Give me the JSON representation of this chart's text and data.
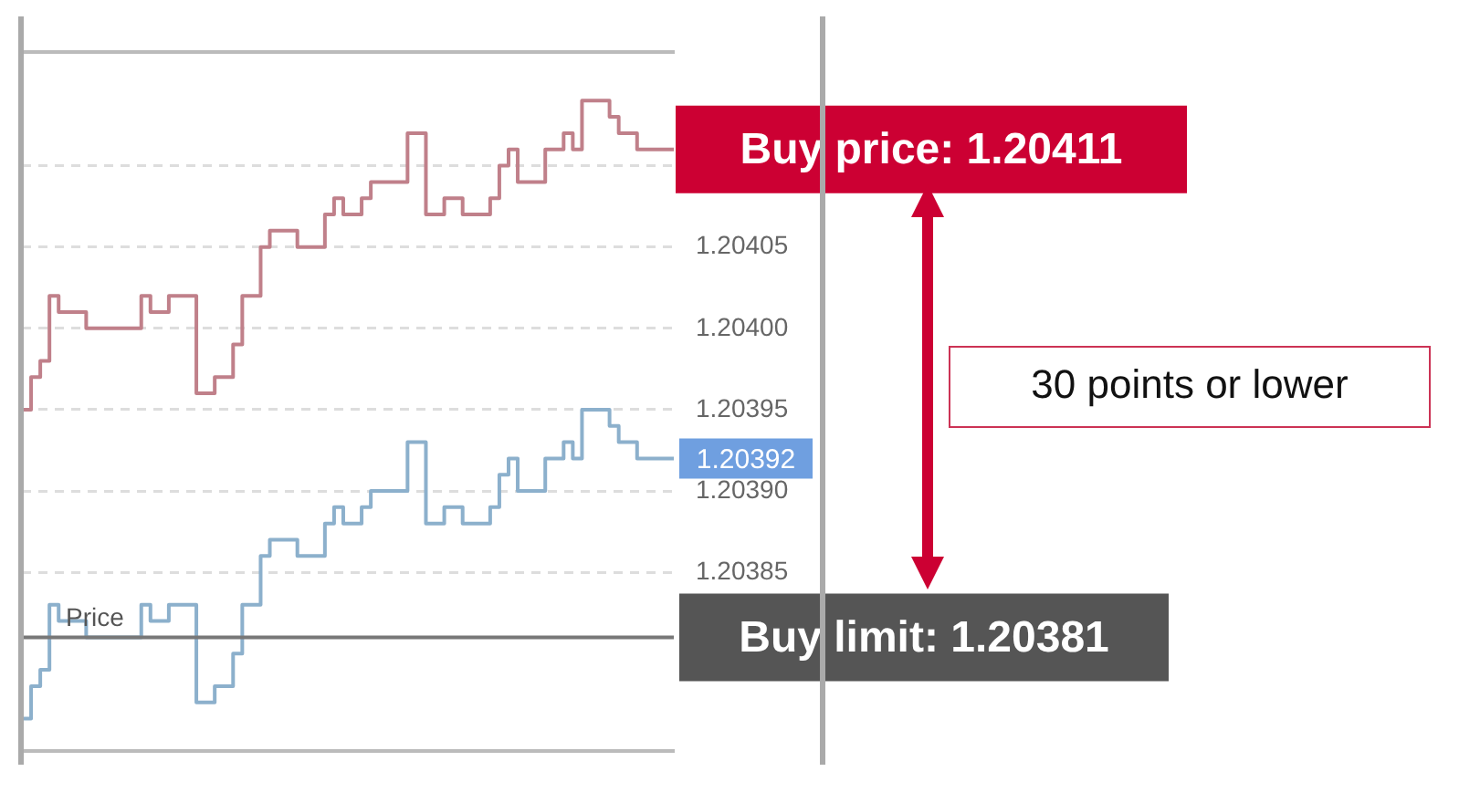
{
  "chart_data": {
    "type": "step",
    "categories": [
      null,
      null,
      null,
      null,
      null,
      null,
      null,
      null,
      null,
      null,
      null,
      null,
      null,
      null,
      null,
      null,
      null,
      null,
      null,
      null,
      null,
      null,
      null,
      null,
      null,
      null,
      null,
      null,
      null,
      null,
      null,
      null,
      null,
      null,
      null,
      null,
      null,
      null,
      null,
      null,
      null,
      null,
      null,
      null,
      null,
      null,
      null,
      null,
      null,
      null,
      null,
      null,
      null,
      null,
      null,
      null,
      null,
      null,
      null,
      null,
      null,
      null,
      null,
      null,
      null,
      null,
      null,
      null,
      null,
      null,
      null,
      null
    ],
    "series": [
      {
        "color": "#c0808a",
        "values": [
          1.20395,
          1.20397,
          1.20398,
          1.20402,
          1.20401,
          1.20401,
          1.20401,
          1.204,
          1.204,
          1.204,
          1.204,
          1.204,
          1.204,
          1.20402,
          1.20401,
          1.20401,
          1.20402,
          1.20402,
          1.20402,
          1.20396,
          1.20396,
          1.20397,
          1.20397,
          1.20399,
          1.20402,
          1.20402,
          1.20405,
          1.20406,
          1.20406,
          1.20406,
          1.20405,
          1.20405,
          1.20405,
          1.20407,
          1.20408,
          1.20407,
          1.20407,
          1.20408,
          1.20409,
          1.20409,
          1.20409,
          1.20409,
          1.20412,
          1.20412,
          1.20407,
          1.20407,
          1.20408,
          1.20408,
          1.20407,
          1.20407,
          1.20407,
          1.20408,
          1.2041,
          1.20411,
          1.20409,
          1.20409,
          1.20409,
          1.20411,
          1.20411,
          1.20412,
          1.20411,
          1.20414,
          1.20414,
          1.20414,
          1.20413,
          1.20412,
          1.20412,
          1.20411,
          1.20411,
          1.20411,
          1.20411,
          1.20411
        ]
      },
      {
        "color": "#8cb0cc",
        "values": [
          1.20376,
          1.20378,
          1.20379,
          1.20383,
          1.20382,
          1.20382,
          1.20382,
          1.20381,
          1.20381,
          1.20381,
          1.20381,
          1.20381,
          1.20381,
          1.20383,
          1.20382,
          1.20382,
          1.20383,
          1.20383,
          1.20383,
          1.20377,
          1.20377,
          1.20378,
          1.20378,
          1.2038,
          1.20383,
          1.20383,
          1.20386,
          1.20387,
          1.20387,
          1.20387,
          1.20386,
          1.20386,
          1.20386,
          1.20388,
          1.20389,
          1.20388,
          1.20388,
          1.20389,
          1.2039,
          1.2039,
          1.2039,
          1.2039,
          1.20393,
          1.20393,
          1.20388,
          1.20388,
          1.20389,
          1.20389,
          1.20388,
          1.20388,
          1.20388,
          1.20389,
          1.20391,
          1.20392,
          1.2039,
          1.2039,
          1.2039,
          1.20392,
          1.20392,
          1.20393,
          1.20392,
          1.20395,
          1.20395,
          1.20395,
          1.20394,
          1.20393,
          1.20393,
          1.20392,
          1.20392,
          1.20392,
          1.20392,
          1.20392
        ]
      }
    ],
    "ylim": [
      1.20374,
      1.20417
    ],
    "yticks": [
      1.20385,
      {
        "value": 1.2039,
        "label": "1.20390"
      },
      1.20395,
      {
        "value": 1.204,
        "label": "1.20400"
      },
      1.20405,
      {
        "value": 1.2041,
        "label": null
      }
    ],
    "grid": "y",
    "legend": false,
    "line_style": "solid",
    "marker": "none",
    "ref_lines": [
      {
        "axis": "y",
        "value": 1.20381,
        "label": "Price",
        "color": "#777777"
      }
    ],
    "annotations": [
      "Buy price: 1.20411",
      "1.20392",
      "Buy limit: 1.20381",
      "30 points or lower"
    ]
  }
}
